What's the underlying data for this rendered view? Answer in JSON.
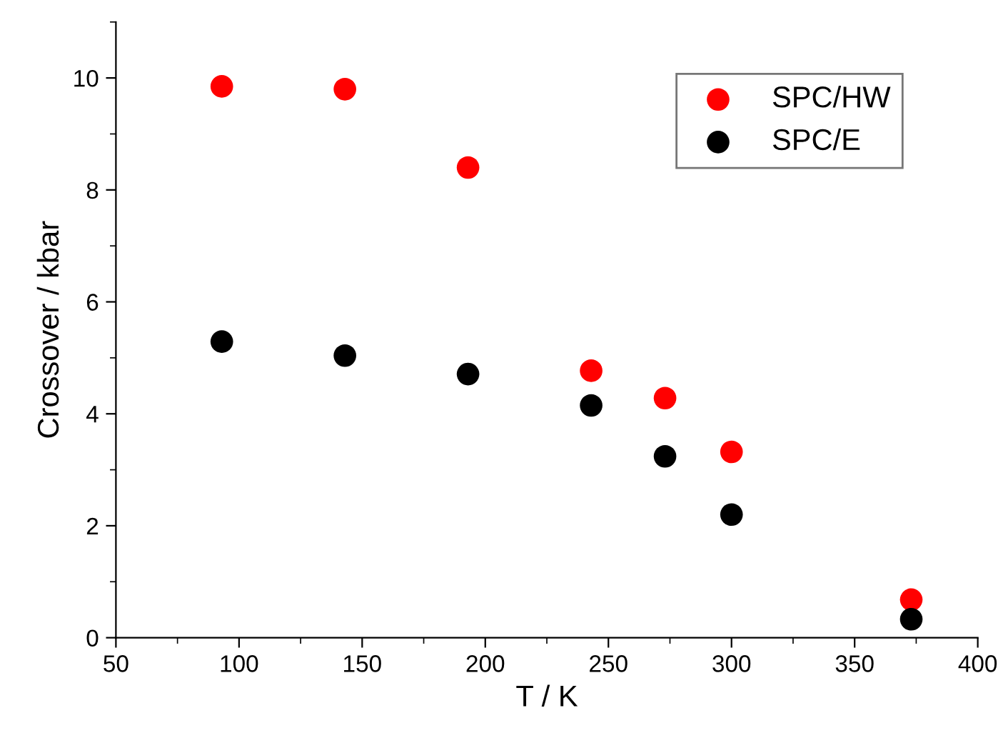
{
  "chart_data": {
    "type": "scatter",
    "xlabel": "T / K",
    "ylabel": "Crossover / kbar",
    "x": [
      93,
      143,
      193,
      243,
      273,
      300,
      373
    ],
    "series": [
      {
        "name": "SPC/HW",
        "color": "#ff0000",
        "values": [
          9.85,
          9.8,
          8.4,
          4.77,
          4.28,
          3.32,
          0.68
        ]
      },
      {
        "name": "SPC/E",
        "color": "#000000",
        "values": [
          5.29,
          5.04,
          4.71,
          4.15,
          3.24,
          2.2,
          0.33
        ]
      }
    ],
    "xlim": [
      50,
      400
    ],
    "xticks": [
      50,
      100,
      150,
      200,
      250,
      300,
      350,
      400
    ],
    "ylim": [
      0,
      11
    ],
    "yticks": [
      0,
      2,
      4,
      6,
      8,
      10
    ],
    "marker": "circle",
    "grid": false,
    "legend": "top right"
  }
}
